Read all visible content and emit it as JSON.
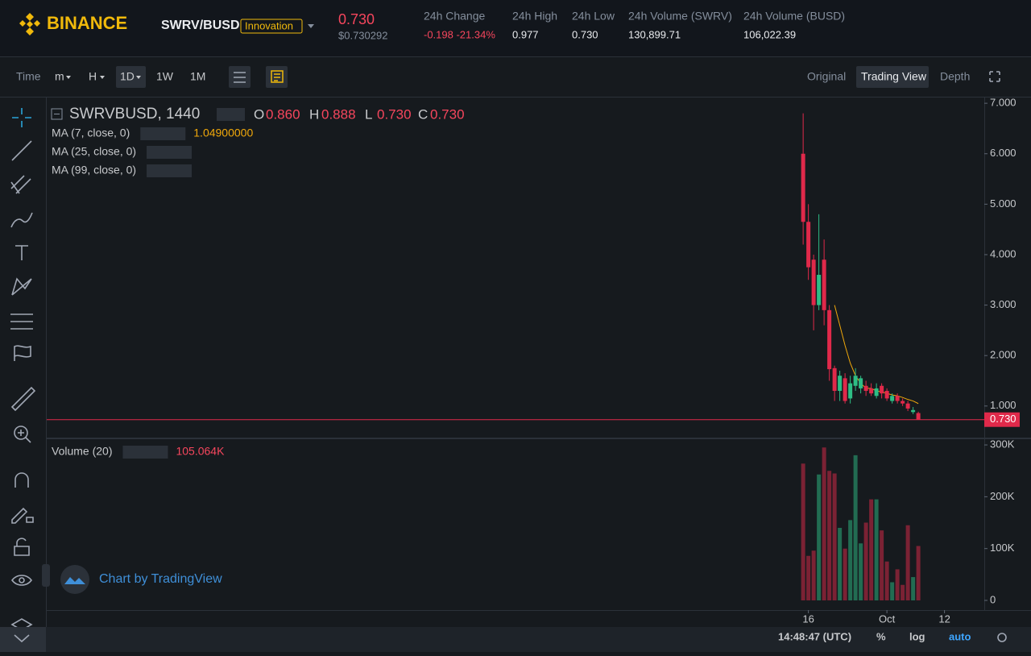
{
  "header": {
    "logo": "BINANCE",
    "pair": "SWRV/BUSD",
    "tag": "Innovation",
    "price": "0.730",
    "price_usd": "$0.730292",
    "stats": [
      {
        "label": "24h Change",
        "value": "-0.198 -21.34%"
      },
      {
        "label": "24h High",
        "value": "0.977"
      },
      {
        "label": "24h Low",
        "value": "0.730"
      },
      {
        "label": "24h Volume (SWRV)",
        "value": "130,899.71"
      },
      {
        "label": "24h Volume (BUSD)",
        "value": "106,022.39"
      }
    ]
  },
  "toolbar": {
    "intervals": [
      "Time",
      "m",
      "H",
      "1D",
      "1W",
      "1M"
    ],
    "views": [
      "Original",
      "Trading View",
      "Depth"
    ]
  },
  "chart_data": {
    "type": "candlestick",
    "title": "SWRVBUSD, 1440",
    "legend": [
      {
        "label": "O",
        "value": "0.860"
      },
      {
        "label": "H",
        "value": "0.888"
      },
      {
        "label": "L",
        "value": "0.730"
      },
      {
        "label": "C",
        "value": "0.730"
      }
    ],
    "x": [
      0,
      1,
      2,
      3,
      4,
      5,
      6,
      7,
      8,
      9,
      10,
      11,
      12,
      13,
      14,
      15,
      16,
      17,
      18,
      19,
      20,
      21,
      22
    ],
    "open": [
      6.0,
      4.65,
      3.9,
      3.0,
      3.9,
      2.9,
      1.75,
      1.3,
      1.55,
      1.15,
      1.4,
      1.35,
      1.4,
      1.35,
      1.2,
      1.4,
      1.3,
      1.1,
      1.2,
      1.1,
      1.05,
      0.88,
      0.86
    ],
    "high": [
      6.8,
      5.0,
      4.0,
      4.8,
      4.3,
      3.0,
      1.8,
      1.7,
      1.65,
      1.6,
      1.75,
      1.6,
      1.5,
      1.45,
      1.45,
      1.45,
      1.35,
      1.25,
      1.25,
      1.15,
      1.1,
      0.98,
      0.888
    ],
    "low": [
      4.2,
      3.5,
      2.5,
      2.9,
      2.6,
      1.5,
      1.1,
      1.1,
      1.05,
      1.05,
      1.3,
      1.25,
      1.2,
      1.2,
      1.15,
      1.15,
      1.1,
      1.05,
      1.05,
      1.0,
      0.9,
      0.84,
      0.73
    ],
    "close": [
      4.65,
      3.75,
      3.0,
      3.6,
      2.9,
      1.73,
      1.3,
      1.6,
      1.1,
      1.45,
      1.6,
      1.55,
      1.3,
      1.25,
      1.35,
      1.25,
      1.15,
      1.2,
      1.1,
      1.05,
      0.95,
      0.92,
      0.73
    ],
    "up_color": "#2ebd85",
    "down_color": "#e0294a",
    "xlim": [
      -144.5,
      34.6
    ],
    "xticks": [
      {
        "value": 1,
        "label": "16"
      },
      {
        "value": 16,
        "label": "Oct"
      },
      {
        "value": 27,
        "label": "12"
      }
    ],
    "ylim": [
      0.39,
      7.13
    ],
    "yticks": [
      {
        "value": 1,
        "label": "1.000"
      },
      {
        "value": 2,
        "label": "2.000"
      },
      {
        "value": 3,
        "label": "3.000"
      },
      {
        "value": 4,
        "label": "4.000"
      },
      {
        "value": 5,
        "label": "5.000"
      },
      {
        "value": 6,
        "label": "6.000"
      },
      {
        "value": 7,
        "label": "7.000"
      }
    ],
    "last_price": {
      "value": 0.73,
      "label": "0.730"
    },
    "indicators": [
      {
        "name": "MA (7, close, 0)",
        "value_label": "1.04900000",
        "color": "#f0a80b",
        "values": [
          null,
          null,
          null,
          null,
          null,
          null,
          3.0,
          2.6,
          2.2,
          1.85,
          1.6,
          1.45,
          1.35,
          1.35,
          1.3,
          1.28,
          1.25,
          1.22,
          1.2,
          1.17,
          1.13,
          1.1,
          1.049
        ]
      },
      {
        "name": "MA (25, close, 0)"
      },
      {
        "name": "MA (99, close, 0)"
      }
    ],
    "volume": {
      "name": "Volume (20)",
      "value_label": "105.064K",
      "values": [
        264000,
        86000,
        96000,
        243000,
        295000,
        250000,
        245000,
        140000,
        100000,
        155000,
        280000,
        110000,
        150000,
        195000,
        195000,
        135000,
        75000,
        35000,
        60000,
        30000,
        145000,
        45000,
        105064
      ],
      "ylim": [
        -18650,
        311000
      ],
      "yticks": [
        0,
        {
          "value": 100000,
          "label": "100K"
        },
        {
          "value": 200000,
          "label": "200K"
        },
        {
          "value": 300000,
          "label": "300K"
        }
      ]
    },
    "watermark": "Chart by TradingView"
  },
  "footer": {
    "time": "14:48:47 (UTC)",
    "buttons": [
      "%",
      "log",
      "auto"
    ]
  }
}
